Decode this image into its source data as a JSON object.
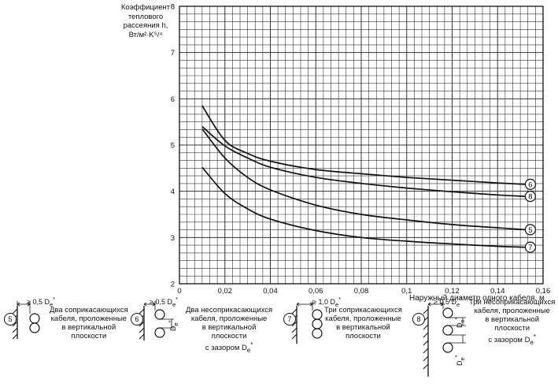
{
  "chart_data": {
    "type": "line",
    "ylabel_lines": [
      "Коэффициент",
      "теплового",
      "рассеяния h,",
      "Вт/м²·K⁵/⁴"
    ],
    "xlabel": "Наружный диаметр одного кабеля, м",
    "xlim": [
      0,
      0.16
    ],
    "ylim": [
      2,
      8
    ],
    "x_ticks": [
      "0",
      "0,02",
      "0,04",
      "0,06",
      "0,08",
      "0,1",
      "0,12",
      "0,14",
      "0,16"
    ],
    "y_ticks": [
      "2",
      "3",
      "4",
      "5",
      "6",
      "7",
      "8"
    ],
    "grid": true,
    "series": [
      {
        "name": "6",
        "x": [
          0.01,
          0.02,
          0.03,
          0.04,
          0.06,
          0.08,
          0.1,
          0.12,
          0.14,
          0.152
        ],
        "y": [
          5.85,
          5.1,
          4.82,
          4.65,
          4.47,
          4.38,
          4.3,
          4.24,
          4.18,
          4.15
        ]
      },
      {
        "name": "8",
        "x": [
          0.01,
          0.02,
          0.03,
          0.04,
          0.06,
          0.08,
          0.1,
          0.12,
          0.14,
          0.152
        ],
        "y": [
          5.4,
          4.98,
          4.72,
          4.52,
          4.3,
          4.17,
          4.07,
          3.99,
          3.92,
          3.89
        ]
      },
      {
        "name": "5",
        "x": [
          0.01,
          0.02,
          0.03,
          0.04,
          0.06,
          0.08,
          0.1,
          0.12,
          0.14,
          0.152
        ],
        "y": [
          5.35,
          4.72,
          4.3,
          4.03,
          3.7,
          3.5,
          3.38,
          3.28,
          3.21,
          3.17
        ]
      },
      {
        "name": "7",
        "x": [
          0.01,
          0.02,
          0.03,
          0.04,
          0.06,
          0.08,
          0.1,
          0.12,
          0.14,
          0.152
        ],
        "y": [
          4.52,
          3.95,
          3.62,
          3.4,
          3.15,
          3.0,
          2.92,
          2.86,
          2.81,
          2.79
        ]
      }
    ]
  },
  "legend": {
    "item5": {
      "num": "5",
      "dim": "≥ 0,5 D",
      "lines": [
        "Два соприкасающихся",
        "кабеля, проложенные",
        "в вертикальной",
        "плоскости"
      ]
    },
    "item6": {
      "num": "6",
      "dim": "≥ 0,5 D",
      "dimv": "D",
      "lines": [
        "Два несоприкасающихся",
        "кабеля, проложенные",
        "в вертикальной",
        "плоскости",
        "с зазором D"
      ]
    },
    "item7": {
      "num": "7",
      "dim": "≥ 1,0 D",
      "lines": [
        "Три соприкасающихся",
        "кабеля, проложенные",
        "в вертикальной",
        "плоскости"
      ]
    },
    "item8": {
      "num": "8",
      "dim": "≥ 0,5 D",
      "dimv1": "D",
      "dimv2": "D",
      "lines": [
        "Три несоприкасающихся",
        "кабеля, проложенные",
        "в вертикальной",
        "плоскости",
        "с зазором D"
      ]
    },
    "sub": "e",
    "sup": "*"
  }
}
